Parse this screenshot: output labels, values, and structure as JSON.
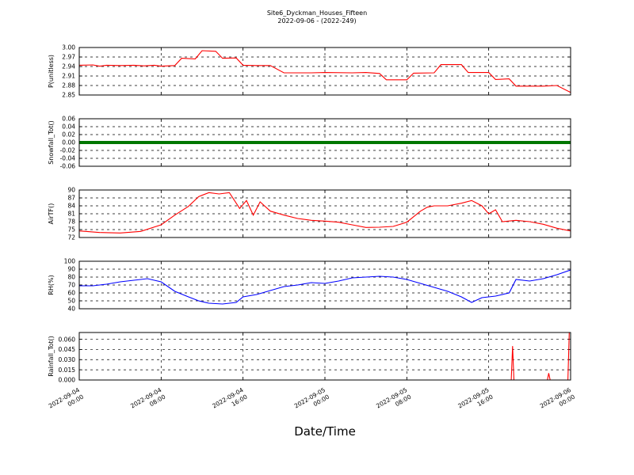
{
  "chart_data": {
    "title": "Site6_Dyckman_Houses_Fifteen",
    "subtitle": "2022-09-06 - (2022-249)",
    "xlabel": "Date/Time",
    "x_range": [
      "2022-09-04 00:00",
      "2022-09-06 00:00"
    ],
    "x_ticks": [
      {
        "line1": "2022-09-04",
        "line2": "00:00"
      },
      {
        "line1": "2022-09-04",
        "line2": "08:00"
      },
      {
        "line1": "2022-09-04",
        "line2": "16:00"
      },
      {
        "line1": "2022-09-05",
        "line2": "00:00"
      },
      {
        "line1": "2022-09-05",
        "line2": "08:00"
      },
      {
        "line1": "2022-09-05",
        "line2": "16:00"
      },
      {
        "line1": "2022-09-06",
        "line2": "00:00"
      }
    ],
    "grid": true,
    "panels": [
      {
        "type": "line",
        "ylabel": "P(unitless)",
        "ylim": [
          2.85,
          3.0
        ],
        "yticks": [
          "2.85",
          "2.88",
          "2.91",
          "2.94",
          "2.97",
          "3.00"
        ],
        "color": "#ff0000",
        "points": [
          [
            0,
            2.944
          ],
          [
            2,
            2.945
          ],
          [
            3,
            2.941
          ],
          [
            4,
            2.944
          ],
          [
            6,
            2.943
          ],
          [
            8,
            2.944
          ],
          [
            9.5,
            2.942
          ],
          [
            11,
            2.944
          ],
          [
            12,
            2.941
          ],
          [
            14,
            2.943
          ],
          [
            15,
            2.966
          ],
          [
            17,
            2.964
          ],
          [
            18,
            2.99
          ],
          [
            20,
            2.988
          ],
          [
            21,
            2.966
          ],
          [
            23,
            2.967
          ],
          [
            24,
            2.944
          ],
          [
            26,
            2.943
          ],
          [
            28,
            2.943
          ],
          [
            30,
            2.92
          ],
          [
            34,
            2.92
          ],
          [
            36,
            2.921
          ],
          [
            40,
            2.92
          ],
          [
            42,
            2.921
          ],
          [
            44,
            2.918
          ],
          [
            45,
            2.898
          ],
          [
            48,
            2.898
          ],
          [
            49,
            2.919
          ],
          [
            52,
            2.92
          ],
          [
            53,
            2.946
          ],
          [
            56,
            2.946
          ],
          [
            57,
            2.921
          ],
          [
            60,
            2.921
          ],
          [
            61,
            2.899
          ],
          [
            63,
            2.901
          ],
          [
            64,
            2.878
          ],
          [
            68,
            2.878
          ],
          [
            70,
            2.88
          ],
          [
            72,
            2.858
          ]
        ]
      },
      {
        "type": "line",
        "ylabel": "Snowfall_Tot()",
        "ylim": [
          -0.06,
          0.06
        ],
        "yticks": [
          "-0.06",
          "-0.04",
          "-0.02",
          "0.00",
          "0.02",
          "0.04",
          "0.06"
        ],
        "color": "#007700",
        "points": [
          [
            0,
            0
          ],
          [
            72,
            0
          ]
        ]
      },
      {
        "type": "line",
        "ylabel": "AirTF()",
        "ylim": [
          72,
          90
        ],
        "yticks": [
          "72",
          "75",
          "78",
          "81",
          "84",
          "87",
          "90"
        ],
        "color": "#ff0000",
        "points": [
          [
            0,
            74.5
          ],
          [
            3,
            73.9
          ],
          [
            6,
            73.7
          ],
          [
            9,
            74.3
          ],
          [
            12,
            76.8
          ],
          [
            14,
            80.5
          ],
          [
            16,
            83.8
          ],
          [
            17.5,
            87.5
          ],
          [
            19,
            89
          ],
          [
            20.5,
            88.5
          ],
          [
            22,
            89
          ],
          [
            23.5,
            83
          ],
          [
            24.5,
            86
          ],
          [
            25.5,
            80.5
          ],
          [
            26.5,
            85.5
          ],
          [
            28,
            82
          ],
          [
            30,
            80.5
          ],
          [
            32,
            79.2
          ],
          [
            34,
            78.5
          ],
          [
            36,
            78.2
          ],
          [
            38,
            77.8
          ],
          [
            40,
            76.8
          ],
          [
            42,
            75.8
          ],
          [
            44,
            75.9
          ],
          [
            46,
            76.2
          ],
          [
            48,
            77.8
          ],
          [
            50,
            82
          ],
          [
            51,
            83.5
          ],
          [
            52,
            84
          ],
          [
            54,
            84
          ],
          [
            56,
            85
          ],
          [
            57.5,
            86
          ],
          [
            59,
            84
          ],
          [
            60,
            81
          ],
          [
            61,
            82.5
          ],
          [
            62,
            78
          ],
          [
            64,
            78.5
          ],
          [
            66,
            78
          ],
          [
            68,
            77
          ],
          [
            70,
            75.5
          ],
          [
            72,
            74.5
          ]
        ]
      },
      {
        "type": "line",
        "ylabel": "RH(%)",
        "ylim": [
          40,
          100
        ],
        "yticks": [
          "40",
          "50",
          "60",
          "70",
          "80",
          "90",
          "100"
        ],
        "color": "#0000ff",
        "points": [
          [
            0,
            69
          ],
          [
            2,
            69
          ],
          [
            4,
            71
          ],
          [
            6,
            74
          ],
          [
            8,
            76
          ],
          [
            10,
            78
          ],
          [
            12,
            74
          ],
          [
            14,
            62
          ],
          [
            16,
            55
          ],
          [
            17.5,
            50
          ],
          [
            19,
            47
          ],
          [
            21,
            46
          ],
          [
            23,
            48
          ],
          [
            24,
            55
          ],
          [
            26,
            58
          ],
          [
            28,
            63
          ],
          [
            30,
            68
          ],
          [
            32,
            70
          ],
          [
            34,
            73
          ],
          [
            36,
            72
          ],
          [
            38,
            75
          ],
          [
            40,
            79
          ],
          [
            42,
            80
          ],
          [
            44,
            81
          ],
          [
            46,
            80
          ],
          [
            48,
            77
          ],
          [
            50,
            72
          ],
          [
            52,
            67
          ],
          [
            54,
            62
          ],
          [
            56,
            55
          ],
          [
            57.5,
            48
          ],
          [
            59,
            54
          ],
          [
            61,
            56
          ],
          [
            63,
            60
          ],
          [
            64,
            77
          ],
          [
            66,
            75
          ],
          [
            68,
            78
          ],
          [
            70,
            83
          ],
          [
            72,
            89
          ]
        ]
      },
      {
        "type": "line",
        "ylabel": "Rainfall_Tot()",
        "ylim": [
          0,
          0.07
        ],
        "yticks": [
          "0.000",
          "0.015",
          "0.030",
          "0.045",
          "0.060"
        ],
        "color": "#ff0000",
        "points": [
          [
            0,
            0
          ],
          [
            63.3,
            0
          ],
          [
            63.5,
            0.05
          ],
          [
            63.7,
            0
          ],
          [
            68.6,
            0
          ],
          [
            68.8,
            0.01
          ],
          [
            69,
            0
          ],
          [
            71.6,
            0
          ],
          [
            71.8,
            0.07
          ],
          [
            72,
            0.07
          ]
        ]
      }
    ]
  }
}
